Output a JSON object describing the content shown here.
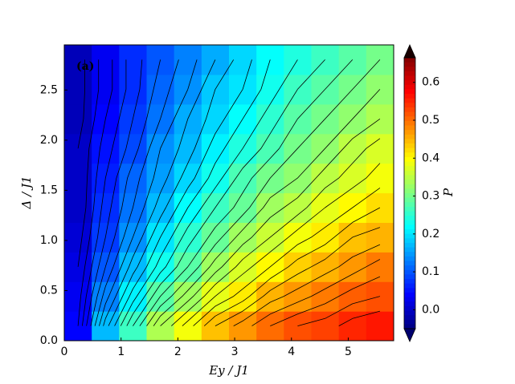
{
  "chart_data": {
    "type": "contour",
    "annotation": "(a)",
    "xlabel": "Ey / J1",
    "ylabel": "Δ / J1",
    "colorbar_label": "P",
    "colormap": "jet",
    "xlim": [
      0,
      5.8
    ],
    "ylim": [
      0,
      2.95
    ],
    "clim": [
      -0.05,
      0.665
    ],
    "xticks": [
      0,
      1,
      2,
      3,
      4,
      5
    ],
    "yticks": [
      {
        "value": 0,
        "label": "0.0"
      },
      {
        "value": 0.5,
        "label": "0.5"
      },
      {
        "value": 1,
        "label": "1.0"
      },
      {
        "value": 1.5,
        "label": "1.5"
      },
      {
        "value": 2,
        "label": "2.0"
      },
      {
        "value": 2.5,
        "label": "2.5"
      }
    ],
    "cticks": [
      {
        "value": 0,
        "label": "0.0"
      },
      {
        "value": 0.1,
        "label": "0.1"
      },
      {
        "value": 0.2,
        "label": "0.2"
      },
      {
        "value": 0.3,
        "label": "0.3"
      },
      {
        "value": 0.4,
        "label": "0.4"
      },
      {
        "value": 0.5,
        "label": "0.5"
      },
      {
        "value": 0.6,
        "label": "0.6"
      }
    ],
    "x": [
      0.242,
      0.725,
      1.208,
      1.692,
      2.175,
      2.658,
      3.142,
      3.625,
      4.108,
      4.592,
      5.075,
      5.558
    ],
    "y": [
      0.1475,
      0.4425,
      0.7375,
      1.0325,
      1.3275,
      1.6225,
      1.9175,
      2.2125,
      2.5075,
      2.8025
    ],
    "z": [
      [
        0.04,
        0.17,
        0.26,
        0.34,
        0.39,
        0.44,
        0.47,
        0.5,
        0.52,
        0.53,
        0.55,
        0.56
      ],
      [
        0.03,
        0.13,
        0.21,
        0.28,
        0.33,
        0.38,
        0.41,
        0.45,
        0.47,
        0.49,
        0.51,
        0.52
      ],
      [
        0.02,
        0.1,
        0.17,
        0.23,
        0.28,
        0.33,
        0.37,
        0.4,
        0.43,
        0.45,
        0.47,
        0.49
      ],
      [
        0.01,
        0.08,
        0.14,
        0.2,
        0.25,
        0.29,
        0.33,
        0.36,
        0.39,
        0.41,
        0.44,
        0.45
      ],
      [
        0.0,
        0.07,
        0.12,
        0.17,
        0.22,
        0.26,
        0.29,
        0.33,
        0.35,
        0.38,
        0.4,
        0.42
      ],
      [
        0.0,
        0.06,
        0.11,
        0.15,
        0.19,
        0.23,
        0.27,
        0.3,
        0.32,
        0.35,
        0.37,
        0.39
      ],
      [
        0.0,
        0.05,
        0.09,
        0.14,
        0.17,
        0.21,
        0.24,
        0.27,
        0.3,
        0.32,
        0.35,
        0.37
      ],
      [
        -0.01,
        0.04,
        0.08,
        0.12,
        0.16,
        0.19,
        0.22,
        0.25,
        0.28,
        0.3,
        0.32,
        0.34
      ],
      [
        -0.01,
        0.03,
        0.07,
        0.11,
        0.14,
        0.18,
        0.2,
        0.23,
        0.26,
        0.28,
        0.3,
        0.32
      ],
      [
        -0.01,
        0.03,
        0.07,
        0.1,
        0.13,
        0.16,
        0.19,
        0.22,
        0.24,
        0.26,
        0.28,
        0.3
      ]
    ],
    "levels": [
      0,
      0.02,
      0.04,
      0.06,
      0.08,
      0.1,
      0.12,
      0.14,
      0.16,
      0.18,
      0.2,
      0.22,
      0.24,
      0.26,
      0.28,
      0.3,
      0.32,
      0.34,
      0.36,
      0.38,
      0.4,
      0.42,
      0.44,
      0.46,
      0.48,
      0.5,
      0.52,
      0.54,
      0.56,
      0.58,
      0.6
    ],
    "line_color": "#000000"
  }
}
